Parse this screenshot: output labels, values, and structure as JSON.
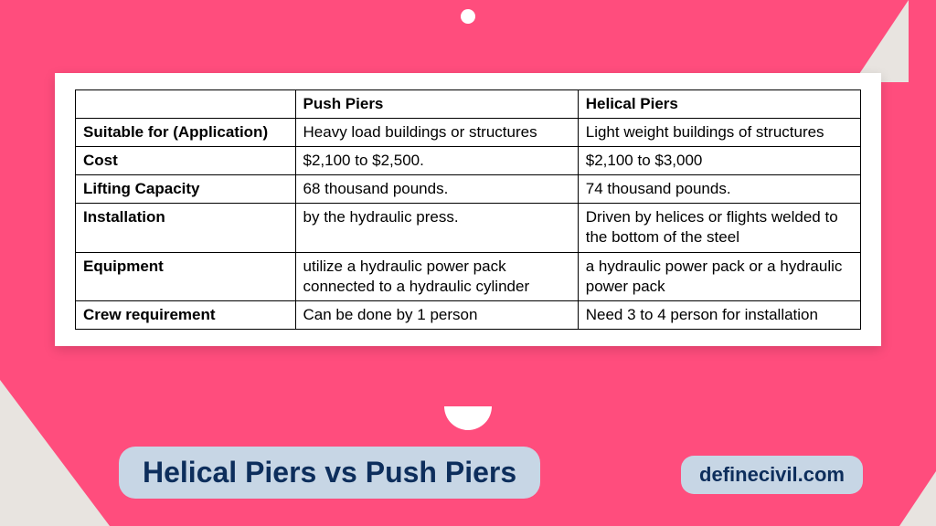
{
  "background_color": "#ff4d7d",
  "decoration_color": "#e8e4e0",
  "pill_bg": "#c7d6e5",
  "pill_fg": "#0d2e5c",
  "table": {
    "columns": [
      "",
      "Push Piers",
      "Helical Piers"
    ],
    "rows": [
      {
        "label": "Suitable for (Application)",
        "push": "Heavy load buildings or structures",
        "helical": "Light weight buildings of structures"
      },
      {
        "label": "Cost",
        "push": "$2,100 to $2,500.",
        "helical": "$2,100 to $3,000"
      },
      {
        "label": "Lifting Capacity",
        "push": "68 thousand pounds.",
        "helical": "74 thousand pounds."
      },
      {
        "label": "Installation",
        "push": "by the hydraulic press.",
        "helical": "Driven by helices or flights welded to the bottom of the steel"
      },
      {
        "label": "Equipment",
        "push": "utilize a hydraulic power pack connected to a hydraulic cylinder",
        "helical": "a hydraulic power pack or a hydraulic power pack"
      },
      {
        "label": "Crew requirement",
        "push": "Can be done by 1 person",
        "helical": "Need 3 to 4 person for installation"
      }
    ]
  },
  "title": "Helical Piers vs Push Piers",
  "brand": "definecivil.com"
}
